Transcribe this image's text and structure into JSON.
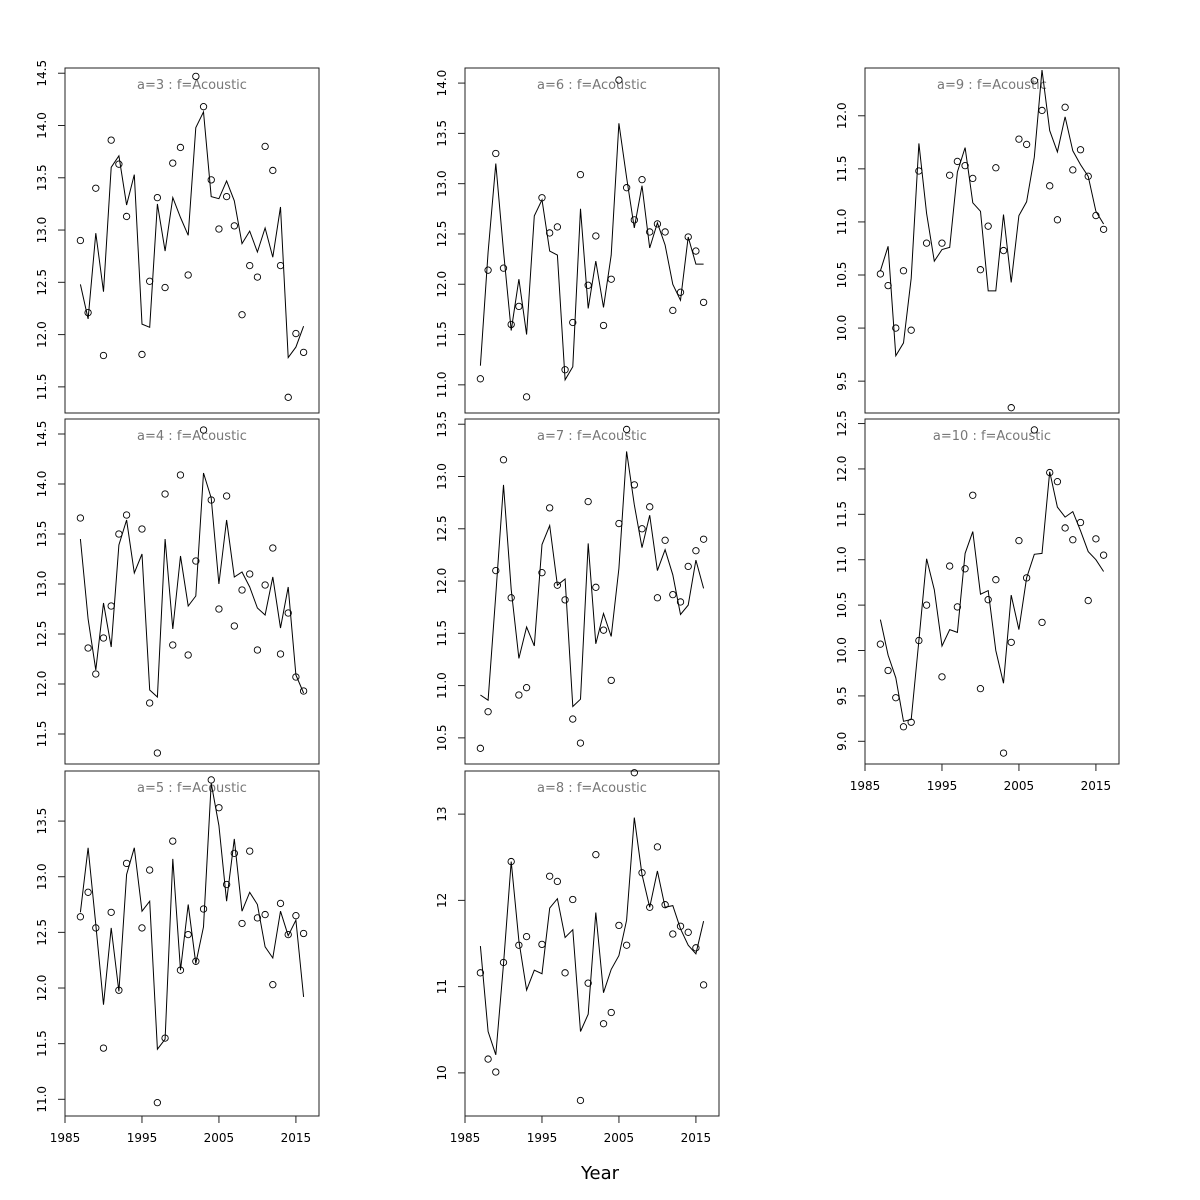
{
  "xlabel": "Year",
  "chart_data": [
    {
      "type": "scatter+line",
      "title": "a=3  :  f=Acoustic",
      "xlim": [
        1985,
        2018
      ],
      "ylim": [
        11.25,
        14.55
      ],
      "yticks": [
        11.5,
        12.0,
        12.5,
        13.0,
        13.5,
        14.0,
        14.5
      ],
      "xticks": [],
      "x": [
        1987,
        1988,
        1989,
        1990,
        1991,
        1992,
        1993,
        1994,
        1995,
        1996,
        1997,
        1998,
        1999,
        2000,
        2001,
        2002,
        2003,
        2004,
        2005,
        2006,
        2007,
        2008,
        2009,
        2010,
        2011,
        2012,
        2013,
        2014,
        2015,
        2016
      ],
      "observed": [
        12.9,
        12.21,
        13.4,
        11.8,
        13.86,
        13.63,
        13.13,
        null,
        11.81,
        12.51,
        13.31,
        12.45,
        13.64,
        13.79,
        12.57,
        14.47,
        14.18,
        13.48,
        13.01,
        13.32,
        13.04,
        12.19,
        12.66,
        12.55,
        13.8,
        13.57,
        12.66,
        11.4,
        12.01,
        11.83
      ],
      "fitted": [
        12.48,
        12.15,
        12.97,
        12.41,
        13.6,
        13.71,
        13.24,
        13.53,
        12.1,
        12.07,
        13.25,
        12.8,
        13.31,
        13.12,
        12.95,
        13.98,
        14.13,
        13.32,
        13.3,
        13.47,
        13.28,
        12.87,
        12.99,
        12.79,
        13.02,
        12.74,
        13.22,
        11.78,
        11.88,
        12.08
      ]
    },
    {
      "type": "scatter+line",
      "title": "a=4  :  f=Acoustic",
      "xlim": [
        1985,
        2018
      ],
      "ylim": [
        11.2,
        14.65
      ],
      "yticks": [
        11.5,
        12.0,
        12.5,
        13.0,
        13.5,
        14.0,
        14.5
      ],
      "xticks": [],
      "x": [
        1987,
        1988,
        1989,
        1990,
        1991,
        1992,
        1993,
        1994,
        1995,
        1996,
        1997,
        1998,
        1999,
        2000,
        2001,
        2002,
        2003,
        2004,
        2005,
        2006,
        2007,
        2008,
        2009,
        2010,
        2011,
        2012,
        2013,
        2014,
        2015,
        2016
      ],
      "observed": [
        13.66,
        12.36,
        12.1,
        12.46,
        12.78,
        13.5,
        13.69,
        null,
        13.55,
        11.81,
        11.31,
        13.9,
        12.39,
        14.09,
        12.29,
        13.23,
        14.54,
        13.84,
        12.75,
        13.88,
        12.58,
        12.94,
        13.1,
        12.34,
        12.99,
        13.36,
        12.3,
        12.71,
        12.07,
        11.93
      ],
      "fitted": [
        13.45,
        12.65,
        12.14,
        12.81,
        12.37,
        13.39,
        13.64,
        13.11,
        13.3,
        11.94,
        11.87,
        13.45,
        12.55,
        13.28,
        12.78,
        12.88,
        14.11,
        13.86,
        13.0,
        13.64,
        13.07,
        13.12,
        12.97,
        12.76,
        12.69,
        13.07,
        12.56,
        12.97,
        12.09,
        11.91
      ]
    },
    {
      "type": "scatter+line",
      "title": "a=5  :  f=Acoustic",
      "xlim": [
        1985,
        2018
      ],
      "ylim": [
        10.85,
        13.95
      ],
      "yticks": [
        11.0,
        11.5,
        12.0,
        12.5,
        13.0,
        13.5
      ],
      "xticks": [
        1985,
        1995,
        2005,
        2015
      ],
      "x": [
        1987,
        1988,
        1989,
        1990,
        1991,
        1992,
        1993,
        1994,
        1995,
        1996,
        1997,
        1998,
        1999,
        2000,
        2001,
        2002,
        2003,
        2004,
        2005,
        2006,
        2007,
        2008,
        2009,
        2010,
        2011,
        2012,
        2013,
        2014,
        2015,
        2016
      ],
      "observed": [
        12.64,
        12.86,
        12.54,
        11.46,
        12.68,
        11.98,
        13.12,
        null,
        12.54,
        13.06,
        10.97,
        11.55,
        13.32,
        12.16,
        12.48,
        12.24,
        12.71,
        13.87,
        13.62,
        12.93,
        13.21,
        12.58,
        13.23,
        12.63,
        12.66,
        12.03,
        12.76,
        12.48,
        12.65,
        12.49
      ],
      "fitted": [
        12.68,
        13.26,
        12.57,
        11.85,
        12.54,
        11.97,
        13.02,
        13.26,
        12.69,
        12.78,
        11.45,
        11.54,
        13.16,
        12.16,
        12.75,
        12.22,
        12.55,
        13.84,
        13.46,
        12.78,
        13.34,
        12.69,
        12.86,
        12.75,
        12.37,
        12.27,
        12.69,
        12.47,
        12.61,
        11.92
      ]
    },
    {
      "type": "scatter+line",
      "title": "a=6  :  f=Acoustic",
      "xlim": [
        1985,
        2018
      ],
      "ylim": [
        10.72,
        14.15
      ],
      "yticks": [
        11.0,
        11.5,
        12.0,
        12.5,
        13.0,
        13.5,
        14.0
      ],
      "xticks": [],
      "x": [
        1987,
        1988,
        1989,
        1990,
        1991,
        1992,
        1993,
        1994,
        1995,
        1996,
        1997,
        1998,
        1999,
        2000,
        2001,
        2002,
        2003,
        2004,
        2005,
        2006,
        2007,
        2008,
        2009,
        2010,
        2011,
        2012,
        2013,
        2014,
        2015,
        2016
      ],
      "observed": [
        11.06,
        12.14,
        13.3,
        12.16,
        11.6,
        11.78,
        10.88,
        null,
        12.86,
        12.51,
        12.57,
        11.15,
        11.62,
        13.09,
        11.99,
        12.48,
        11.59,
        12.05,
        14.03,
        12.96,
        12.64,
        13.04,
        12.52,
        12.6,
        12.52,
        11.74,
        11.92,
        12.47,
        12.33,
        11.82
      ],
      "fitted": [
        11.19,
        12.32,
        13.2,
        12.33,
        11.54,
        12.05,
        11.5,
        12.68,
        12.84,
        12.33,
        12.29,
        11.05,
        11.18,
        12.75,
        11.76,
        12.23,
        11.77,
        12.29,
        13.6,
        13.06,
        12.56,
        12.98,
        12.36,
        12.61,
        12.39,
        12.0,
        11.84,
        12.47,
        12.2,
        12.2
      ]
    },
    {
      "type": "scatter+line",
      "title": "a=7  :  f=Acoustic",
      "xlim": [
        1985,
        2018
      ],
      "ylim": [
        10.25,
        13.55
      ],
      "yticks": [
        10.5,
        11.0,
        11.5,
        12.0,
        12.5,
        13.0,
        13.5
      ],
      "xticks": [],
      "x": [
        1987,
        1988,
        1989,
        1990,
        1991,
        1992,
        1993,
        1994,
        1995,
        1996,
        1997,
        1998,
        1999,
        2000,
        2001,
        2002,
        2003,
        2004,
        2005,
        2006,
        2007,
        2008,
        2009,
        2010,
        2011,
        2012,
        2013,
        2014,
        2015,
        2016
      ],
      "observed": [
        10.4,
        10.75,
        12.1,
        13.16,
        11.84,
        10.91,
        10.98,
        null,
        12.08,
        12.7,
        11.96,
        11.82,
        10.68,
        10.45,
        12.76,
        11.94,
        11.53,
        11.05,
        12.55,
        13.45,
        12.92,
        12.5,
        12.71,
        11.84,
        12.39,
        11.87,
        11.8,
        12.14,
        12.29,
        12.4
      ],
      "fitted": [
        10.91,
        10.86,
        11.87,
        12.92,
        11.92,
        11.26,
        11.56,
        11.38,
        12.35,
        12.53,
        11.96,
        12.02,
        10.8,
        10.87,
        12.36,
        11.4,
        11.69,
        11.47,
        12.12,
        13.24,
        12.73,
        12.32,
        12.63,
        12.1,
        12.3,
        12.06,
        11.68,
        11.77,
        12.2,
        11.93
      ]
    },
    {
      "type": "scatter+line",
      "title": "a=8  :  f=Acoustic",
      "xlim": [
        1985,
        2018
      ],
      "ylim": [
        9.5,
        13.5
      ],
      "yticks": [
        10,
        11,
        12,
        13
      ],
      "xticks": [
        1985,
        1995,
        2005,
        2015
      ],
      "x": [
        1987,
        1988,
        1989,
        1990,
        1991,
        1992,
        1993,
        1994,
        1995,
        1996,
        1997,
        1998,
        1999,
        2000,
        2001,
        2002,
        2003,
        2004,
        2005,
        2006,
        2007,
        2008,
        2009,
        2010,
        2011,
        2012,
        2013,
        2014,
        2015,
        2016
      ],
      "observed": [
        11.16,
        10.16,
        10.01,
        11.28,
        12.45,
        11.48,
        11.58,
        null,
        11.49,
        12.28,
        12.22,
        11.16,
        12.01,
        9.68,
        11.04,
        12.53,
        10.57,
        10.7,
        11.71,
        11.48,
        13.48,
        12.32,
        11.92,
        12.62,
        11.95,
        11.61,
        11.7,
        11.63,
        11.45,
        11.02
      ],
      "fitted": [
        11.47,
        10.48,
        10.21,
        11.26,
        12.45,
        11.53,
        10.96,
        11.19,
        11.15,
        11.91,
        12.02,
        11.57,
        11.66,
        10.48,
        10.68,
        11.86,
        10.93,
        11.2,
        11.36,
        11.77,
        12.96,
        12.3,
        11.92,
        12.34,
        11.92,
        11.94,
        11.67,
        11.48,
        11.38,
        11.76
      ]
    },
    {
      "type": "scatter+line",
      "title": "a=9  :  f=Acoustic",
      "xlim": [
        1985,
        2018
      ],
      "ylim": [
        9.2,
        12.45
      ],
      "yticks": [
        9.5,
        10.0,
        10.5,
        11.0,
        11.5,
        12.0
      ],
      "xticks": [],
      "x": [
        1987,
        1988,
        1989,
        1990,
        1991,
        1992,
        1993,
        1994,
        1995,
        1996,
        1997,
        1998,
        1999,
        2000,
        2001,
        2002,
        2003,
        2004,
        2005,
        2006,
        2007,
        2008,
        2009,
        2010,
        2011,
        2012,
        2013,
        2014,
        2015,
        2016
      ],
      "observed": [
        10.51,
        10.4,
        10.0,
        10.54,
        9.98,
        11.48,
        10.8,
        null,
        10.8,
        11.44,
        11.57,
        11.53,
        11.41,
        10.55,
        10.96,
        11.51,
        10.73,
        9.25,
        11.78,
        11.73,
        12.33,
        12.05,
        11.34,
        11.02,
        12.08,
        11.49,
        11.68,
        11.43,
        11.06,
        10.93
      ],
      "fitted": [
        10.54,
        10.77,
        9.74,
        9.86,
        10.47,
        11.74,
        11.08,
        10.63,
        10.74,
        10.76,
        11.47,
        11.7,
        11.18,
        11.1,
        10.35,
        10.35,
        11.07,
        10.43,
        11.06,
        11.19,
        11.61,
        12.43,
        11.86,
        11.66,
        11.99,
        11.67,
        11.54,
        11.43,
        11.1,
        10.98
      ]
    },
    {
      "type": "scatter+line",
      "title": "a=10  :  f=Acoustic",
      "xlim": [
        1985,
        2018
      ],
      "ylim": [
        8.75,
        12.55
      ],
      "yticks": [
        9.0,
        9.5,
        10.0,
        10.5,
        11.0,
        11.5,
        12.0,
        12.5
      ],
      "xticks": [
        1985,
        1995,
        2005,
        2015
      ],
      "x": [
        1987,
        1988,
        1989,
        1990,
        1991,
        1992,
        1993,
        1994,
        1995,
        1996,
        1997,
        1998,
        1999,
        2000,
        2001,
        2002,
        2003,
        2004,
        2005,
        2006,
        2007,
        2008,
        2009,
        2010,
        2011,
        2012,
        2013,
        2014,
        2015,
        2016
      ],
      "observed": [
        10.07,
        9.78,
        9.48,
        9.16,
        9.21,
        10.11,
        10.5,
        null,
        9.71,
        10.93,
        10.48,
        10.9,
        11.71,
        9.58,
        10.56,
        10.78,
        8.87,
        10.09,
        11.21,
        10.8,
        12.43,
        10.31,
        11.96,
        11.86,
        11.35,
        11.22,
        11.41,
        10.55,
        11.23,
        11.05
      ],
      "fitted": [
        10.34,
        9.95,
        9.7,
        9.22,
        9.24,
        10.11,
        11.01,
        10.67,
        10.05,
        10.23,
        10.2,
        11.07,
        11.31,
        10.62,
        10.66,
        10.0,
        9.64,
        10.61,
        10.23,
        10.8,
        11.06,
        11.07,
        11.97,
        11.58,
        11.47,
        11.53,
        11.32,
        11.09,
        11.0,
        10.87
      ]
    }
  ]
}
